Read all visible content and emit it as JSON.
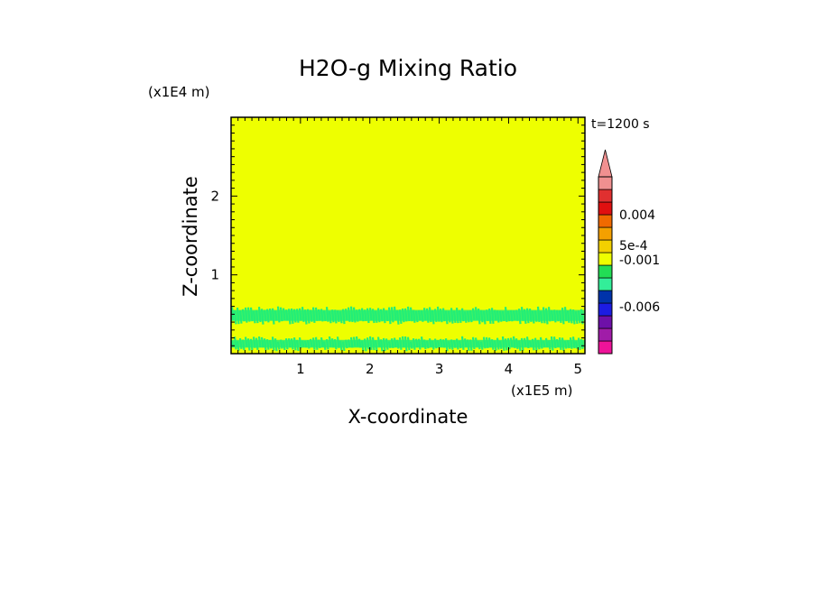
{
  "chart_data": {
    "type": "heatmap",
    "title": "H2O-g Mixing Ratio",
    "xlabel": "X-coordinate",
    "ylabel": "Z-coordinate",
    "x_unit": "(x1E5 m)",
    "y_unit": "(x1E4 m)",
    "time_label": "t=1200 s",
    "xlim": [
      0,
      5.1
    ],
    "ylim": [
      0,
      3.0
    ],
    "x_ticks": [
      1,
      2,
      3,
      4,
      5
    ],
    "y_ticks": [
      1,
      2
    ],
    "background_color": "#EEFF00",
    "bands": [
      {
        "z_min": 0.03,
        "z_max": 0.22,
        "color": "#22EE77"
      },
      {
        "z_min": 0.37,
        "z_max": 0.6,
        "color": "#22EE77"
      }
    ],
    "colorbar": {
      "segments": [
        "#EE1399",
        "#A01CA8",
        "#6E10A8",
        "#1C1CE2",
        "#0033AA",
        "#33EE99",
        "#22DD55",
        "#EEFF00",
        "#F2D000",
        "#F4A000",
        "#F06A00",
        "#E01010",
        "#E03030",
        "#F09090"
      ],
      "labels": [
        "0.004",
        "5e-4",
        "-0.001",
        "-0.006"
      ]
    }
  }
}
